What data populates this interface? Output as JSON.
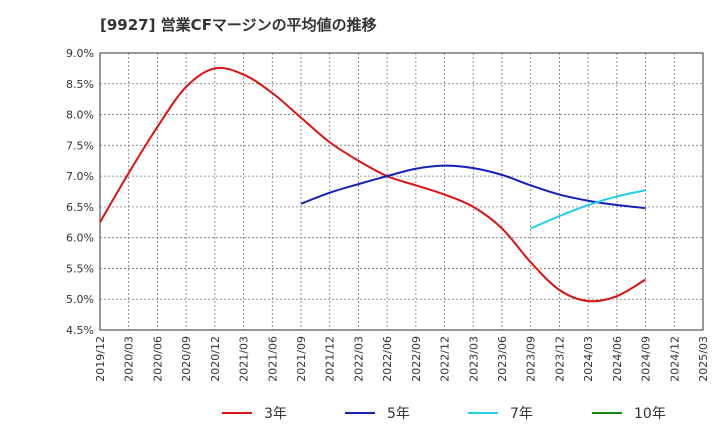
{
  "chart_data": {
    "type": "line",
    "title": "[9927]  営業CFマージンの平均値の推移",
    "xlabel": "",
    "ylabel": "",
    "ylim": [
      4.5,
      9.0
    ],
    "yticks": [
      "9.0%",
      "8.5%",
      "8.0%",
      "7.5%",
      "7.0%",
      "6.5%",
      "6.0%",
      "5.5%",
      "5.0%",
      "4.5%"
    ],
    "ytick_values": [
      9.0,
      8.5,
      8.0,
      7.5,
      7.0,
      6.5,
      6.0,
      5.5,
      5.0,
      4.5
    ],
    "xticks": [
      "2019/12",
      "2020/03",
      "2020/06",
      "2020/09",
      "2020/12",
      "2021/03",
      "2021/06",
      "2021/09",
      "2021/12",
      "2022/03",
      "2022/06",
      "2022/09",
      "2022/12",
      "2023/03",
      "2023/06",
      "2023/09",
      "2023/12",
      "2024/03",
      "2024/06",
      "2024/09",
      "2024/12",
      "2025/03"
    ],
    "grid": true,
    "legend_position": "bottom",
    "series": [
      {
        "name": "3年",
        "color": "#dd1111",
        "x": [
          "2019/12",
          "2020/03",
          "2020/06",
          "2020/09",
          "2020/12",
          "2021/03",
          "2021/06",
          "2021/09",
          "2021/12",
          "2022/03",
          "2022/06",
          "2022/09",
          "2022/12",
          "2023/03",
          "2023/06",
          "2023/09",
          "2023/12",
          "2024/03",
          "2024/06",
          "2024/09"
        ],
        "values": [
          6.25,
          7.05,
          7.8,
          8.45,
          8.75,
          8.65,
          8.35,
          7.95,
          7.55,
          7.25,
          7.0,
          6.85,
          6.7,
          6.5,
          6.15,
          5.6,
          5.15,
          4.97,
          5.05,
          5.32
        ]
      },
      {
        "name": "5年",
        "color": "#1122bb",
        "x": [
          "2021/09",
          "2021/12",
          "2022/03",
          "2022/06",
          "2022/09",
          "2022/12",
          "2023/03",
          "2023/06",
          "2023/09",
          "2023/12",
          "2024/03",
          "2024/06",
          "2024/09"
        ],
        "values": [
          6.55,
          6.73,
          6.87,
          7.0,
          7.12,
          7.17,
          7.13,
          7.02,
          6.85,
          6.7,
          6.6,
          6.53,
          6.48
        ]
      },
      {
        "name": "7年",
        "color": "#22ccee",
        "x": [
          "2023/09",
          "2023/12",
          "2024/03",
          "2024/06",
          "2024/09"
        ],
        "values": [
          6.15,
          6.35,
          6.53,
          6.67,
          6.77
        ]
      },
      {
        "name": "10年",
        "color": "#118811",
        "x": [],
        "values": []
      }
    ]
  }
}
